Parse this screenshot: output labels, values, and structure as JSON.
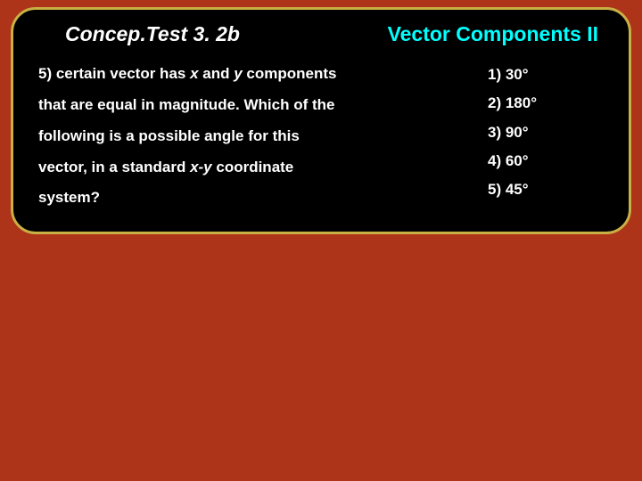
{
  "header": {
    "title_left": "Concep.Test 3. 2b",
    "title_right": "Vector Components II"
  },
  "question": {
    "line1_prefix": "5)  certain vector has ",
    "line1_x": "x",
    "line1_mid": " and ",
    "line1_y": "y",
    "line1_suffix": " components",
    "line2": "that are equal in magnitude.  Which of the",
    "line3": "following is a possible angle for this",
    "line4_prefix": "vector, in a standard ",
    "line4_xy": "x-y",
    "line4_suffix": " coordinate",
    "line5": "system?"
  },
  "answers": {
    "a1": "1)  30°",
    "a2": "2)  180°",
    "a3": "3)  90°",
    "a4": "4)  60°",
    "a5": "5)  45°"
  },
  "colors": {
    "background": "#ad3319",
    "box_bg": "#000000",
    "box_border": "#c9b045",
    "title_right": "#00ffff",
    "text": "#ffffff"
  }
}
